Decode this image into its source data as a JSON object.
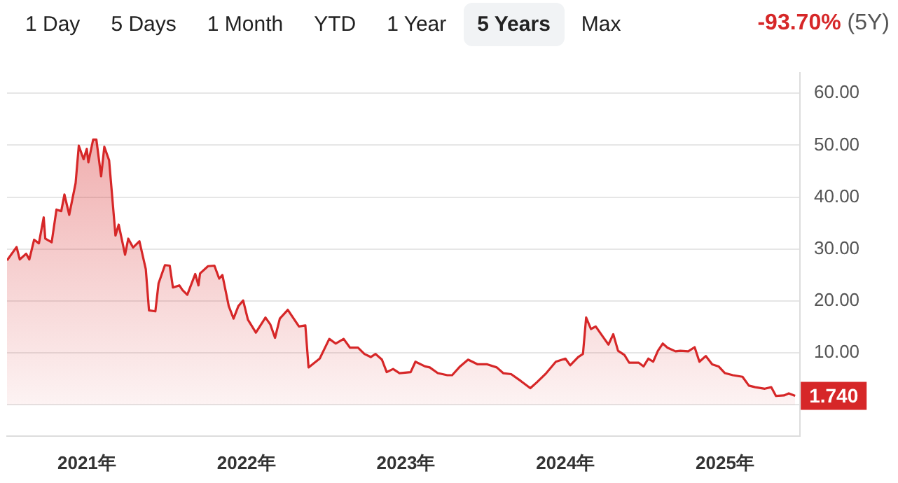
{
  "chart_data": {
    "type": "area",
    "title": "-93.70%",
    "subtitle": "(5Y)",
    "annotations": [
      "1 Day",
      "5 Days",
      "1 Month",
      "YTD",
      "1 Year",
      "5 Years",
      "Max",
      {
        "text": "1.740",
        "x": 2025.44,
        "y": 1.74
      }
    ],
    "series": [
      {
        "color": "#d62728",
        "x": [
          2020.5,
          2020.56,
          2020.58,
          2020.62,
          2020.64,
          2020.67,
          2020.7,
          2020.73,
          2020.74,
          2020.78,
          2020.81,
          2020.84,
          2020.86,
          2020.89,
          2020.93,
          2020.95,
          2020.98,
          2021.0,
          2021.01,
          2021.04,
          2021.06,
          2021.09,
          2021.11,
          2021.14,
          2021.18,
          2021.2,
          2021.24,
          2021.26,
          2021.29,
          2021.33,
          2021.37,
          2021.39,
          2021.43,
          2021.45,
          2021.49,
          2021.52,
          2021.54,
          2021.58,
          2021.6,
          2021.63,
          2021.68,
          2021.7,
          2021.71,
          2021.76,
          2021.8,
          2021.83,
          2021.85,
          2021.89,
          2021.92,
          2021.95,
          2021.98,
          2022.01,
          2022.06,
          2022.12,
          2022.15,
          2022.18,
          2022.21,
          2022.26,
          2022.33,
          2022.37,
          2022.39,
          2022.46,
          2022.52,
          2022.56,
          2022.61,
          2022.65,
          2022.7,
          2022.74,
          2022.78,
          2022.81,
          2022.85,
          2022.88,
          2022.92,
          2022.96,
          2023.03,
          2023.06,
          2023.12,
          2023.15,
          2023.2,
          2023.26,
          2023.29,
          2023.34,
          2023.39,
          2023.45,
          2023.51,
          2023.57,
          2023.61,
          2023.66,
          2023.72,
          2023.78,
          2023.82,
          2023.88,
          2023.94,
          2024.0,
          2024.03,
          2024.08,
          2024.11,
          2024.13,
          2024.16,
          2024.19,
          2024.24,
          2024.27,
          2024.3,
          2024.33,
          2024.37,
          2024.4,
          2024.46,
          2024.49,
          2024.52,
          2024.55,
          2024.58,
          2024.61,
          2024.64,
          2024.69,
          2024.72,
          2024.77,
          2024.81,
          2024.84,
          2024.88,
          2024.92,
          2024.96,
          2025.0,
          2025.05,
          2025.11,
          2025.15,
          2025.19,
          2025.25,
          2025.29,
          2025.32,
          2025.37,
          2025.4,
          2025.44
        ],
        "values": [
          27.8,
          30.4,
          28.0,
          29.1,
          28.0,
          31.8,
          31.1,
          36.1,
          32.0,
          31.3,
          37.6,
          37.3,
          40.5,
          36.6,
          42.7,
          49.9,
          47.3,
          49.3,
          46.7,
          51.1,
          51.1,
          44.0,
          49.7,
          47.1,
          32.6,
          34.7,
          28.9,
          32.0,
          30.3,
          31.5,
          26.1,
          18.2,
          18.0,
          23.4,
          26.9,
          26.8,
          22.6,
          23.0,
          22.1,
          21.2,
          25.2,
          23.0,
          25.3,
          26.7,
          26.8,
          24.3,
          25.0,
          19.0,
          16.6,
          19.0,
          20.1,
          16.4,
          13.9,
          16.8,
          15.5,
          12.9,
          16.6,
          18.3,
          15.1,
          15.3,
          7.2,
          8.9,
          12.7,
          11.8,
          12.7,
          11.0,
          11.0,
          9.8,
          9.2,
          9.8,
          8.7,
          6.3,
          6.9,
          6.1,
          6.3,
          8.3,
          7.4,
          7.2,
          6.1,
          5.7,
          5.7,
          7.4,
          8.7,
          7.8,
          7.8,
          7.2,
          6.1,
          5.9,
          4.6,
          3.2,
          4.3,
          6.1,
          8.3,
          8.9,
          7.6,
          9.2,
          9.8,
          16.8,
          14.6,
          15.1,
          12.9,
          11.6,
          13.6,
          10.4,
          9.6,
          8.1,
          8.1,
          7.4,
          8.9,
          8.3,
          10.4,
          11.8,
          11.0,
          10.3,
          10.4,
          10.3,
          11.1,
          8.3,
          9.4,
          7.8,
          7.4,
          6.1,
          5.7,
          5.4,
          3.7,
          3.4,
          3.1,
          3.4,
          1.7,
          1.8,
          2.2,
          1.74
        ]
      }
    ],
    "xlim": [
      2020.5,
      2025.47
    ],
    "xticks": [
      {
        "value": 2021,
        "label": "2021年"
      },
      {
        "value": 2022,
        "label": "2022年"
      },
      {
        "value": 2023,
        "label": "2023年"
      },
      {
        "value": 2024,
        "label": "2024年"
      },
      {
        "value": 2025,
        "label": "2025年"
      }
    ],
    "ylim": [
      -6,
      64
    ],
    "yticks": [
      {
        "value": 0,
        "label": null
      },
      {
        "value": 10,
        "label": "10.00"
      },
      {
        "value": 20,
        "label": "20.00"
      },
      {
        "value": 30,
        "label": "30.00"
      },
      {
        "value": 40,
        "label": "40.00"
      },
      {
        "value": 50,
        "label": "50.00"
      },
      {
        "value": 60,
        "label": "60.00"
      }
    ],
    "grid": "y",
    "legend": false
  }
}
